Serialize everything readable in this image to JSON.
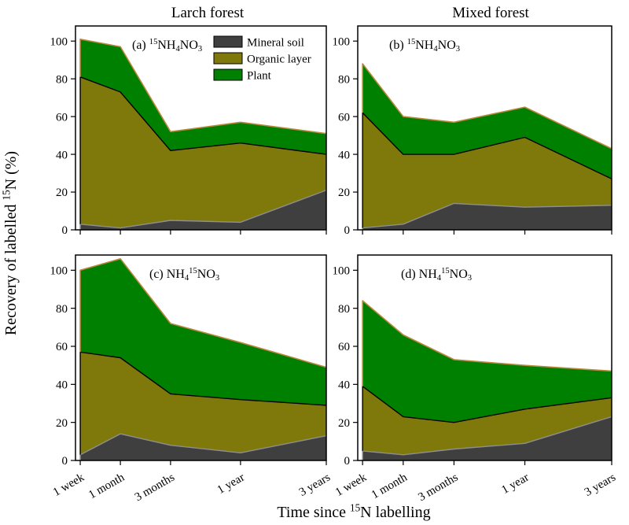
{
  "figure": {
    "column_titles": [
      "Larch forest",
      "Mixed forest"
    ],
    "y_axis": {
      "label_text": "Recovery of labelled 15N (%)",
      "label_tokens": [
        {
          "t": "Recovery of labelled "
        },
        {
          "t": "15",
          "s": "sup"
        },
        {
          "t": "N (%)"
        }
      ],
      "ticks": [
        0,
        20,
        40,
        60,
        80,
        100
      ]
    },
    "x_axis": {
      "label_text": "Time since 15N labelling",
      "label_tokens": [
        {
          "t": "Time since "
        },
        {
          "t": "15",
          "s": "sup"
        },
        {
          "t": "N labelling"
        }
      ],
      "categories": [
        "1 week",
        "1 month",
        "3 months",
        "1 year",
        "3 years"
      ]
    },
    "legend": {
      "position": "top-of-panel-a",
      "items": [
        {
          "label": "Mineral soil",
          "color": "#3f3f3f"
        },
        {
          "label": "Organic layer",
          "color": "#7e790a"
        },
        {
          "label": "Plant",
          "color": "#008000"
        }
      ]
    },
    "boundary_line_colors": [
      "#8f8f8f",
      "#000000",
      "#b8883c"
    ],
    "frame_color": "#000000",
    "background_color": "#ffffff"
  },
  "chart_data": [
    {
      "panel": "a",
      "type": "area",
      "stacked": true,
      "column": "Larch forest",
      "label_text": "(a) 15NH4NO3",
      "label_tokens": [
        {
          "t": "(a) "
        },
        {
          "t": "15",
          "s": "sup"
        },
        {
          "t": "NH"
        },
        {
          "t": "4",
          "s": "sub"
        },
        {
          "t": "NO"
        },
        {
          "t": "3",
          "s": "sub"
        }
      ],
      "categories": [
        "1 week",
        "1 month",
        "3 months",
        "1 year",
        "3 years"
      ],
      "series": [
        {
          "name": "Mineral soil",
          "values": [
            3,
            1,
            5,
            4,
            21
          ]
        },
        {
          "name": "Organic layer",
          "values": [
            78,
            72,
            37,
            42,
            19
          ]
        },
        {
          "name": "Plant",
          "values": [
            20,
            24,
            10,
            11,
            11
          ]
        }
      ],
      "stack_totals": [
        101,
        97,
        52,
        57,
        51
      ],
      "ylim": [
        0,
        108
      ]
    },
    {
      "panel": "b",
      "type": "area",
      "stacked": true,
      "column": "Mixed forest",
      "label_text": "(b) 15NH4NO3",
      "label_tokens": [
        {
          "t": "(b) "
        },
        {
          "t": "15",
          "s": "sup"
        },
        {
          "t": "NH"
        },
        {
          "t": "4",
          "s": "sub"
        },
        {
          "t": "NO"
        },
        {
          "t": "3",
          "s": "sub"
        }
      ],
      "categories": [
        "1 week",
        "1 month",
        "3 months",
        "1 year",
        "3 years"
      ],
      "series": [
        {
          "name": "Mineral soil",
          "values": [
            1,
            3,
            14,
            12,
            13
          ]
        },
        {
          "name": "Organic layer",
          "values": [
            61,
            37,
            26,
            37,
            14
          ]
        },
        {
          "name": "Plant",
          "values": [
            26,
            20,
            17,
            16,
            16
          ]
        }
      ],
      "stack_totals": [
        88,
        60,
        57,
        65,
        43
      ],
      "ylim": [
        0,
        108
      ]
    },
    {
      "panel": "c",
      "type": "area",
      "stacked": true,
      "column": "Larch forest",
      "label_text": "(c) NH4 15NO3",
      "label_tokens": [
        {
          "t": "(c) "
        },
        {
          "t": "NH"
        },
        {
          "t": "4",
          "s": "sub"
        },
        {
          "t": "15",
          "s": "sup"
        },
        {
          "t": "NO"
        },
        {
          "t": "3",
          "s": "sub"
        }
      ],
      "categories": [
        "1 week",
        "1 month",
        "3 months",
        "1 year",
        "3 years"
      ],
      "series": [
        {
          "name": "Mineral soil",
          "values": [
            3,
            14,
            8,
            4,
            13
          ]
        },
        {
          "name": "Organic layer",
          "values": [
            54,
            40,
            27,
            28,
            16
          ]
        },
        {
          "name": "Plant",
          "values": [
            43,
            52,
            37,
            30,
            20
          ]
        }
      ],
      "stack_totals": [
        100,
        106,
        72,
        62,
        49
      ],
      "ylim": [
        0,
        108
      ]
    },
    {
      "panel": "d",
      "type": "area",
      "stacked": true,
      "column": "Mixed forest",
      "label_text": "(d) NH4 15NO3",
      "label_tokens": [
        {
          "t": "(d) "
        },
        {
          "t": "NH"
        },
        {
          "t": "4",
          "s": "sub"
        },
        {
          "t": "15",
          "s": "sup"
        },
        {
          "t": "NO"
        },
        {
          "t": "3",
          "s": "sub"
        }
      ],
      "categories": [
        "1 week",
        "1 month",
        "3 months",
        "1 year",
        "3 years"
      ],
      "series": [
        {
          "name": "Mineral soil",
          "values": [
            5,
            3,
            6,
            9,
            23
          ]
        },
        {
          "name": "Organic layer",
          "values": [
            34,
            20,
            14,
            18,
            10
          ]
        },
        {
          "name": "Plant",
          "values": [
            45,
            43,
            33,
            23,
            14
          ]
        }
      ],
      "stack_totals": [
        84,
        66,
        53,
        50,
        47
      ],
      "ylim": [
        0,
        108
      ]
    }
  ]
}
